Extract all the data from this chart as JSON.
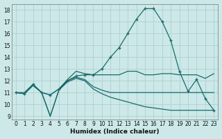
{
  "title": "",
  "xlabel": "Humidex (Indice chaleur)",
  "ylabel": "",
  "background_color": "#cce8e8",
  "grid_color": "#b0d0d0",
  "line_color": "#1a6b6b",
  "xlim": [
    -0.5,
    23.5
  ],
  "ylim": [
    8.7,
    18.5
  ],
  "xticks": [
    0,
    1,
    2,
    3,
    4,
    5,
    6,
    7,
    8,
    9,
    10,
    11,
    12,
    13,
    14,
    15,
    16,
    17,
    18,
    19,
    20,
    21,
    22,
    23
  ],
  "yticks": [
    9,
    10,
    11,
    12,
    13,
    14,
    15,
    16,
    17,
    18
  ],
  "series": [
    {
      "y": [
        11.0,
        11.0,
        11.7,
        11.0,
        10.8,
        11.3,
        12.1,
        12.8,
        12.6,
        12.5,
        12.5,
        12.5,
        12.5,
        12.8,
        12.8,
        12.5,
        12.5,
        12.6,
        12.6,
        12.5,
        12.5,
        12.5,
        12.2,
        12.6
      ],
      "markers": false
    },
    {
      "y": [
        11.0,
        10.9,
        11.7,
        11.0,
        10.8,
        11.3,
        12.0,
        12.4,
        12.5,
        12.5,
        13.0,
        14.0,
        14.8,
        16.0,
        17.2,
        18.1,
        18.1,
        17.0,
        15.4,
        12.8,
        11.1,
        12.1,
        10.5,
        9.5
      ],
      "markers": true
    },
    {
      "y": [
        11.0,
        10.9,
        11.6,
        11.0,
        9.0,
        11.2,
        12.0,
        12.3,
        12.1,
        11.5,
        11.2,
        11.0,
        11.0,
        11.0,
        11.0,
        11.0,
        11.0,
        11.0,
        11.0,
        11.0,
        11.0,
        11.0,
        11.0,
        11.0
      ],
      "markers": false
    },
    {
      "y": [
        11.0,
        10.9,
        11.6,
        11.0,
        9.0,
        11.2,
        11.9,
        12.2,
        12.0,
        11.3,
        10.9,
        10.6,
        10.4,
        10.2,
        10.0,
        9.8,
        9.7,
        9.6,
        9.5,
        9.5,
        9.5,
        9.5,
        9.5,
        9.5
      ],
      "markers": false
    }
  ]
}
